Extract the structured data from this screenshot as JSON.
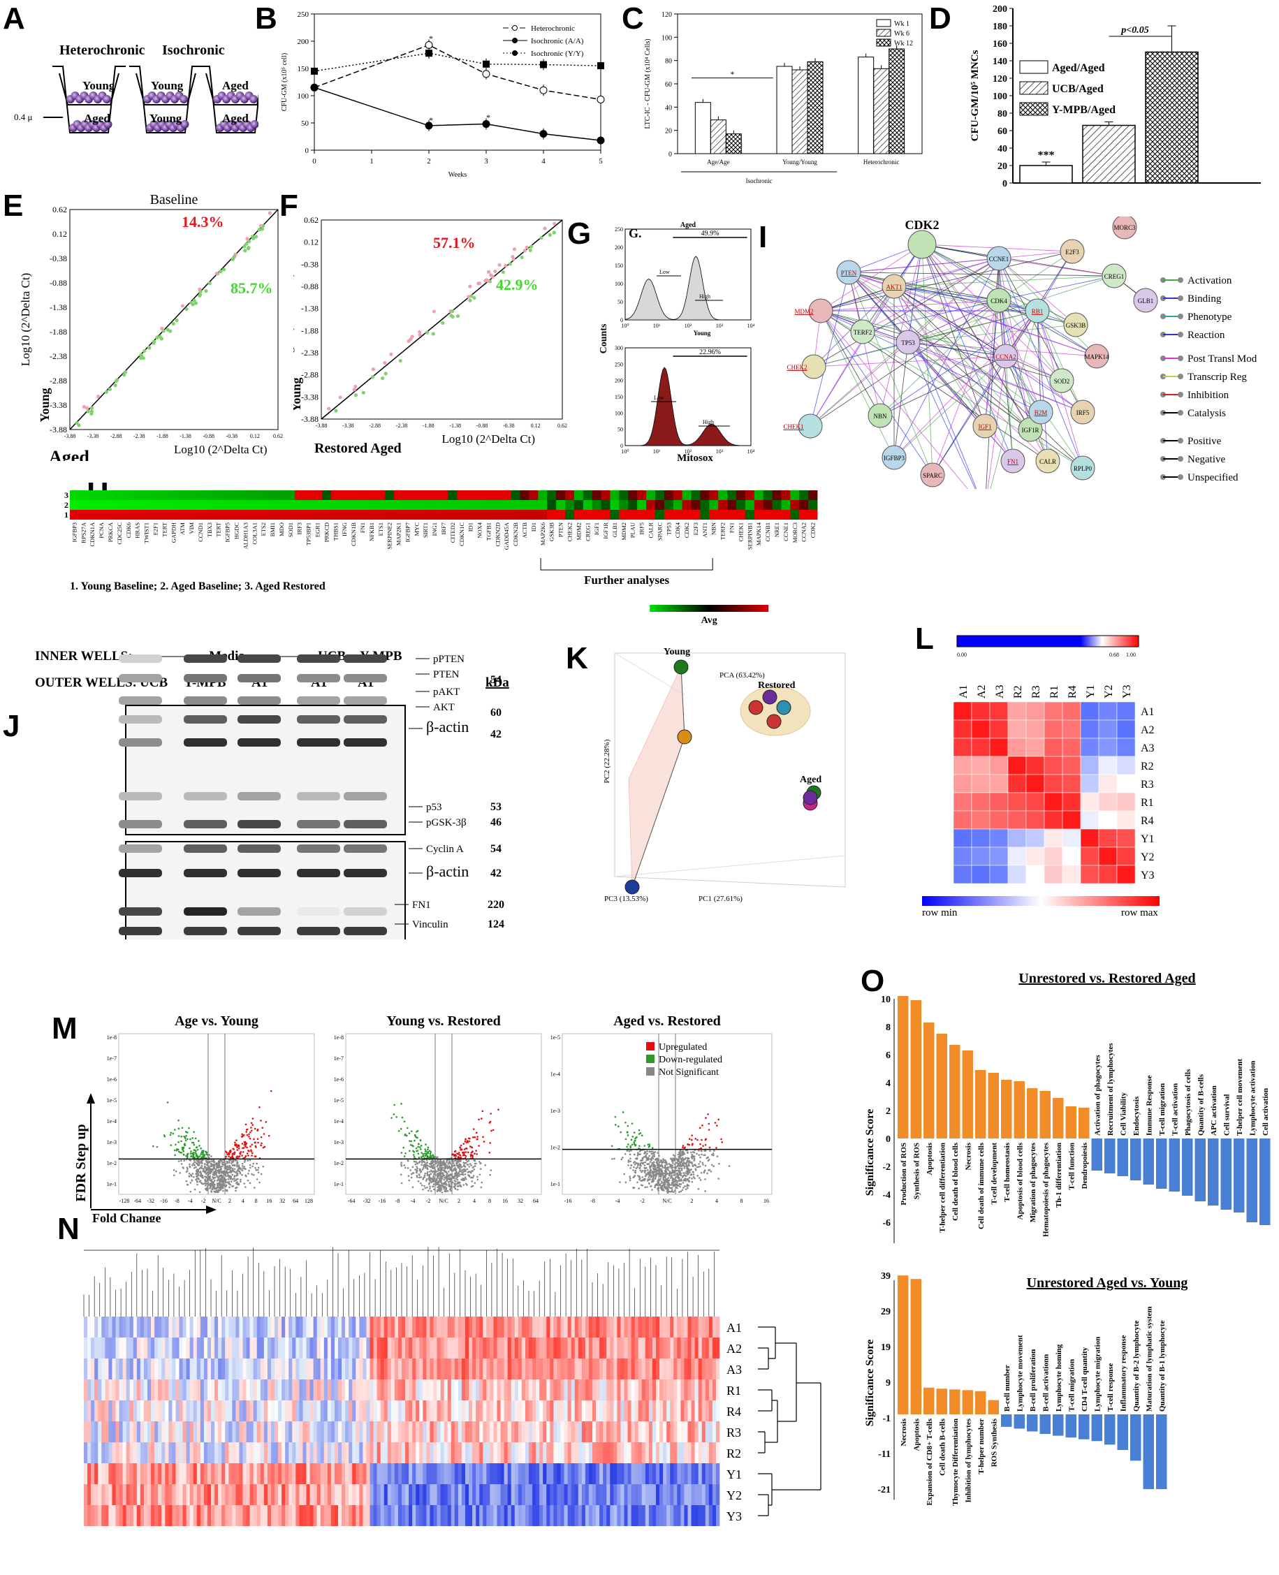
{
  "panel_letters": [
    "A",
    "B",
    "C",
    "D",
    "E",
    "F",
    "G",
    "H",
    "I",
    "J",
    "K",
    "L",
    "M",
    "N",
    "O"
  ],
  "A": {
    "heterochronic": "Heterochronic",
    "isochronic": "Isochronic",
    "young": "Young",
    "aged": "Aged",
    "membrane": "0.4 μ"
  },
  "B": {
    "ylabel": "CFU-GM (x10⁵ cell)",
    "xlabel": "Weeks",
    "legend": [
      "Heterochronic",
      "Isochronic (A/A)",
      "Isochronic (Y/Y)"
    ],
    "chart_data": {
      "type": "line",
      "x": [
        0,
        2,
        3,
        4,
        5
      ],
      "ylim": [
        0,
        250
      ],
      "xlim": [
        0,
        5
      ],
      "yticks": [
        0,
        50,
        100,
        150,
        200,
        250
      ],
      "xticks": [
        0,
        1,
        2,
        3,
        4,
        5
      ],
      "series": [
        {
          "name": "Heterochronic",
          "values": [
            115,
            193,
            140,
            110,
            93
          ]
        },
        {
          "name": "Isochronic (A/A)",
          "values": [
            115,
            45,
            48,
            30,
            18
          ]
        },
        {
          "name": "Isochronic (Y/Y)",
          "values": [
            145,
            178,
            158,
            157,
            155
          ]
        }
      ]
    }
  },
  "C": {
    "ylabel": "LTC-IC - CFU-GM (x10⁴ Cells)",
    "legend": [
      "Wk 1",
      "Wk 6",
      "Wk 12"
    ],
    "groups": [
      "Age/Age",
      "Young/Young",
      "Heterochronic"
    ],
    "subgroup": "Isochronic",
    "star": "*",
    "chart_data": {
      "type": "bar",
      "categories": [
        "Age/Age",
        "Young/Young",
        "Heterochronic"
      ],
      "ylim": [
        0,
        120
      ],
      "yticks": [
        0,
        20,
        40,
        60,
        80,
        100,
        120
      ],
      "series": [
        {
          "name": "Wk 1",
          "values": [
            44,
            75,
            83
          ]
        },
        {
          "name": "Wk 6",
          "values": [
            29,
            72,
            73
          ]
        },
        {
          "name": "Wk 12",
          "values": [
            17,
            79,
            90
          ]
        }
      ]
    }
  },
  "D": {
    "ylabel": "CFU-GM/10⁵ MNCs",
    "legend": [
      "Aged/Aged",
      "UCB/Aged",
      "Y-MPB/Aged"
    ],
    "pval": "p<0.05",
    "star": "***",
    "chart_data": {
      "type": "bar",
      "categories": [
        "Aged/Aged",
        "UCB/Aged",
        "Y-MPB/Aged"
      ],
      "values": [
        20,
        66,
        150
      ],
      "ylim": [
        0,
        200
      ],
      "yticks": [
        0,
        20,
        40,
        60,
        80,
        100,
        120,
        140,
        160,
        180,
        200
      ]
    }
  },
  "E": {
    "title": "Baseline",
    "up": "14.3%",
    "down": "85.7%",
    "xlabel": "Log10 (2^Delta Ct)",
    "ylabel": "Log10 (2^Delta Ct)",
    "xaxis": "Aged",
    "yaxis": "Young",
    "ticks": [
      "-3.88",
      "-3.38",
      "-2.88",
      "-2.38",
      "-1.88",
      "-1.38",
      "-0.88",
      "-0.38",
      "0.12",
      "0.62"
    ]
  },
  "F": {
    "up": "57.1%",
    "down": "42.9%",
    "xlabel": "Log10 (2^Delta Ct)",
    "ylabel": "Log10 (2^Delta Ct)",
    "xaxis": "Restored Aged",
    "yaxis": "Young",
    "ticks": [
      "-3.88",
      "-3.38",
      "-2.88",
      "-2.38",
      "-1.88",
      "-1.38",
      "-0.88",
      "-0.38",
      "0.12",
      "0.62"
    ]
  },
  "G": {
    "title_aged": "Aged",
    "g": "G.",
    "pct1": "49.9%",
    "pct2": "22.96%",
    "low": "Low",
    "high": "High",
    "young": "Young",
    "ylabel": "Counts",
    "xlabel": "Mitosox",
    "yticks1": [
      "0",
      "50",
      "100",
      "150",
      "200",
      "250"
    ],
    "yticks2": [
      "0",
      "50",
      "100",
      "150",
      "200",
      "250",
      "300"
    ],
    "xticks": [
      "10⁰",
      "10¹",
      "10²",
      "10³",
      "10⁴"
    ]
  },
  "H": {
    "rows": [
      "1",
      "2",
      "3"
    ],
    "genes": [
      "IGFBP3",
      "RPS27A",
      "CDKN1A",
      "PCNA",
      "PRKCA",
      "CDC25C",
      "CDK6",
      "HRAS",
      "TWIST1",
      "E2F1",
      "TERT",
      "GAPDH",
      "ATM",
      "VIM",
      "CCND1",
      "TBX3",
      "TERT",
      "IGFBP5",
      "HGDC",
      "ALDH1A3",
      "COL3A1",
      "ETS2",
      "BMI1",
      "MDO",
      "SOD1",
      "IRF3",
      "TP53BP1",
      "EGR1",
      "PRKCD",
      "THBS1",
      "IFNG",
      "CDKN1B",
      "FN1",
      "NFKB1",
      "ETS1",
      "SERPINE2",
      "MAP2K1",
      "IGFBP7",
      "MYC",
      "SIRT1",
      "ING1",
      "IRF7",
      "CITED2",
      "CDKN1C",
      "ID1",
      "NOX4",
      "TGFB1",
      "CDKN2D",
      "GADD45A",
      "CDKN2B",
      "ACTB",
      "ID1",
      "MAP2K6",
      "GSK3B",
      "PTEN",
      "CHEK2",
      "MDM2",
      "CREG1",
      "IGF1",
      "IGF1R",
      "GLB1",
      "MDM2",
      "PLAU",
      "IRF5",
      "CALR",
      "SPARC",
      "TP53",
      "CDK4",
      "CDK2",
      "E2F3",
      "ANT1",
      "NBN",
      "TERF2",
      "FN1",
      "CHEK1",
      "SERPINB1",
      "MAPK14",
      "CCNB1",
      "NRE1",
      "CCNE1",
      "MORC3",
      "CCNA2",
      "CDK2"
    ],
    "caption": "1. Young Baseline; 2. Aged Baseline; 3. Aged Restored",
    "further": "Further analyses",
    "avg": "Avg"
  },
  "I": {
    "title": "CDK2",
    "legend": [
      "Activation",
      "Binding",
      "Phenotype",
      "Reaction",
      "Post Transl Mod",
      "Transcrip Reg",
      "Inhibition",
      "Catalysis",
      "Positive",
      "Negative",
      "Unspecified"
    ],
    "nodes": [
      "PTEN",
      "AKT1",
      "MDM2",
      "TERF2",
      "TP53",
      "CHEK2",
      "CHEK1",
      "NBN",
      "IGFBP3",
      "IGF1",
      "SPARC",
      "PLAU",
      "FN1",
      "CALR",
      "RPLP0",
      "IGF1R",
      "B2M",
      "IRF5",
      "MAPK14",
      "SOD2",
      "CCNA2",
      "GSK3B",
      "RB1",
      "CDK4",
      "CCNE1",
      "E2F3",
      "MORC3",
      "CREG1",
      "GLB1"
    ]
  },
  "J": {
    "inner": "INNER WELLS:",
    "outer": "OUTER WELLS:",
    "media": "Media",
    "ucb": "UCB",
    "ympb": "Y-MPB",
    "cols_outer": [
      "UCB",
      "Y-MPB",
      "A1",
      "A1",
      "A1"
    ],
    "kda": "kDa",
    "bands": [
      {
        "label": "pPTEN",
        "kda": ""
      },
      {
        "label": "PTEN",
        "kda": "54"
      },
      {
        "label": "pAKT",
        "kda": ""
      },
      {
        "label": "AKT",
        "kda": "60"
      },
      {
        "label": "β-actin",
        "kda": "42"
      },
      {
        "label": "p53",
        "kda": "53"
      },
      {
        "label": "pGSK-3β",
        "kda": "46"
      },
      {
        "label": "Cyclin A",
        "kda": "54"
      },
      {
        "label": "β-actin",
        "kda": "42"
      },
      {
        "label": "FN1",
        "kda": "220"
      },
      {
        "label": "Vinculin",
        "kda": "124"
      }
    ]
  },
  "K": {
    "young": "Young",
    "restored": "Restored",
    "aged": "Aged",
    "pca": "PCA (63.42%)",
    "pc1": "PC1 (27.61%)",
    "pc2": "PC2 (22.28%)",
    "pc3": "PC3 (13.53%)"
  },
  "L": {
    "cols": [
      "A1",
      "A2",
      "A3",
      "R2",
      "R3",
      "R1",
      "R4",
      "Y1",
      "Y2",
      "Y3"
    ],
    "rows": [
      "A1",
      "A2",
      "A3",
      "R2",
      "R3",
      "R1",
      "R4",
      "Y1",
      "Y2",
      "Y3"
    ],
    "scale": [
      "0.00",
      "0.68",
      "1.00"
    ],
    "rowmin": "row min",
    "rowmax": "row max",
    "matrix": [
      [
        1,
        0.95,
        0.93,
        0.7,
        0.72,
        0.8,
        0.82,
        0.1,
        0.15,
        0.12
      ],
      [
        0.95,
        1,
        0.94,
        0.68,
        0.7,
        0.82,
        0.8,
        0.12,
        0.18,
        0.1
      ],
      [
        0.93,
        0.94,
        1,
        0.72,
        0.7,
        0.85,
        0.83,
        0.15,
        0.2,
        0.14
      ],
      [
        0.7,
        0.68,
        0.72,
        1,
        0.95,
        0.88,
        0.85,
        0.3,
        0.45,
        0.4
      ],
      [
        0.72,
        0.7,
        0.7,
        0.95,
        1,
        0.9,
        0.88,
        0.35,
        0.55,
        0.5
      ],
      [
        0.8,
        0.82,
        0.85,
        0.88,
        0.9,
        1,
        0.95,
        0.55,
        0.6,
        0.62
      ],
      [
        0.82,
        0.8,
        0.83,
        0.85,
        0.88,
        0.95,
        1,
        0.45,
        0.5,
        0.55
      ],
      [
        0.1,
        0.12,
        0.15,
        0.3,
        0.35,
        0.55,
        0.45,
        1,
        0.9,
        0.88
      ],
      [
        0.15,
        0.18,
        0.2,
        0.45,
        0.55,
        0.6,
        0.5,
        0.9,
        1,
        0.92
      ],
      [
        0.12,
        0.1,
        0.14,
        0.4,
        0.5,
        0.62,
        0.55,
        0.88,
        0.92,
        1
      ]
    ]
  },
  "M": {
    "titles": [
      "Age vs. Young",
      "Young vs. Restored",
      "Aged vs. Restored"
    ],
    "legend": [
      "Upregulated",
      "Down-regulated",
      "Not Significant"
    ],
    "ylabel": "FDR Step up",
    "xlabel": "Fold Change",
    "yticks1": [
      "1e-8",
      "1e-7",
      "1e-6",
      "1e-5",
      "1e-4",
      "1e-3",
      "1e-2",
      "1e-1"
    ],
    "yticks3": [
      "1e-5",
      "1e-4",
      "1e-3",
      "1e-2",
      "1e-1"
    ],
    "xticks1": [
      "-128",
      "-64",
      "-32",
      "-16",
      "-8",
      "-4",
      "-2",
      "N/C",
      "2",
      "4",
      "8",
      "16",
      "32",
      "64",
      "128"
    ],
    "xticks2": [
      "-64",
      "-32",
      "-16",
      "-8",
      "-4",
      "-2",
      "N/C",
      "2",
      "4",
      "8",
      "16",
      "32",
      "64"
    ],
    "xticks3": [
      "-16",
      "-8",
      "-4",
      "-2",
      "N/C",
      "2",
      "4",
      "8",
      "16"
    ]
  },
  "N": {
    "rows": [
      "A1",
      "A2",
      "A3",
      "R1",
      "R4",
      "R3",
      "R2",
      "Y1",
      "Y2",
      "Y3"
    ]
  },
  "O": {
    "title1": "Unrestored vs. Restored Aged",
    "ylabel": "Significance Score",
    "yticks1": [
      "10",
      "8",
      "6",
      "4",
      "2",
      "0",
      "-2",
      "-4",
      "-6"
    ],
    "chart_data": [
      {
        "type": "bar",
        "title": "Unrestored vs. Restored Aged",
        "ylim": [
          -7,
          10.5
        ],
        "categories": [
          "Production of ROS",
          "Synthesis of ROS",
          "Apoptosis",
          "T-helper cell differentiation",
          "Cell death of blood cells",
          "Necrosis",
          "Cell death of immune cells",
          "T-cell development",
          "T-cell homeostasis",
          "Apoptosis of blood cells",
          "Migration of phagocytes",
          "Hematopoiesis of phagocytes",
          "Th-1 differentiation",
          "T-cell function",
          "Dendropoiesis",
          "Activation of phagocytes",
          "Recruitment of lymphocytes",
          "Cell Viability",
          "Endocytosis",
          "Immune Response",
          "T-cell migration",
          "T-cell activation",
          "Phagocytosis of cells",
          "Quantity of B-cells",
          "APC activation",
          "Cell survival",
          "T-helper cell movement",
          "Lymphocyte activation",
          "Cell activation"
        ],
        "values": [
          10.2,
          9.9,
          8.3,
          7.5,
          6.7,
          6.3,
          4.9,
          4.7,
          4.2,
          4.1,
          3.6,
          3.4,
          2.9,
          2.3,
          2.2,
          -2.3,
          -2.5,
          -2.7,
          -3.0,
          -3.3,
          -3.6,
          -3.8,
          -4.1,
          -4.5,
          -4.8,
          -5.1,
          -5.3,
          -6.0,
          -6.2
        ]
      },
      {
        "type": "bar",
        "title": "Unrestored Aged vs. Young",
        "ylim": [
          -22,
          40
        ],
        "categories": [
          "Necrosis",
          "Apoptosis",
          "Expansion of CD8+ T-cells",
          "Cell death B-cells",
          "Thymocyte Differentiation",
          "Inhibition of lymphocytes",
          "T-helper number",
          "ROS Synthesis",
          "B-cell number",
          "Lymphocyte movement",
          "B-cell proliferation",
          "B-cell activationn",
          "Lymphocyte homing",
          "T-cell migration",
          "CD4 T-cell quantity",
          "Lymphocyte migration",
          "T-cell response",
          "Inflammatory response",
          "Quantity of B-2 lymphocyte",
          "Maturation of lymphatic system",
          "Quantity of B-1 lymphocyte"
        ],
        "values": [
          39,
          38,
          7.5,
          7.2,
          7,
          6.8,
          6.5,
          4,
          -3.5,
          -4,
          -4.8,
          -5.5,
          -6,
          -6.5,
          -7,
          -7.5,
          -8.5,
          -10,
          -13,
          -21,
          -21
        ]
      }
    ],
    "title2": "Unrestored Aged vs. Young",
    "yticks2": [
      "39",
      "29",
      "19",
      "9",
      "-1",
      "-11",
      "-21"
    ]
  }
}
